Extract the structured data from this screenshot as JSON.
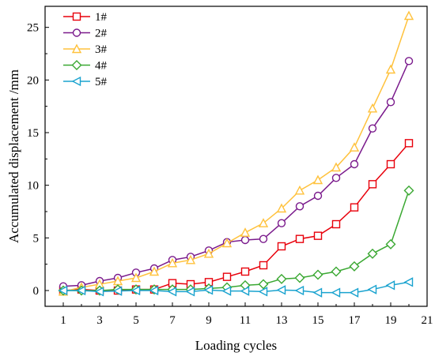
{
  "chart_data": {
    "type": "line",
    "title": "",
    "xlabel": "Loading cycles",
    "ylabel": "Accumulated displacement /mm",
    "xlim": [
      0,
      21
    ],
    "ylim": [
      -1.5,
      27
    ],
    "xticks": [
      1,
      3,
      5,
      7,
      9,
      11,
      13,
      15,
      17,
      19,
      21
    ],
    "xtick_labels": [
      "1",
      "3",
      "5",
      "7",
      "9",
      "11",
      "13",
      "15",
      "17",
      "19",
      "21"
    ],
    "yticks": [
      0,
      5,
      10,
      15,
      20,
      25
    ],
    "ytick_labels": [
      "0",
      "5",
      "10",
      "15",
      "20",
      "25"
    ],
    "grid": false,
    "legend_position": "top-left",
    "x": [
      1,
      2,
      3,
      4,
      5,
      6,
      7,
      8,
      9,
      10,
      11,
      12,
      13,
      14,
      15,
      16,
      17,
      18,
      19,
      20
    ],
    "series": [
      {
        "name": "1#",
        "color": "#e8000b",
        "marker": "square",
        "values": [
          0,
          0.1,
          0.0,
          0.0,
          0.1,
          0.1,
          0.7,
          0.6,
          0.8,
          1.3,
          1.8,
          2.4,
          4.2,
          4.9,
          5.2,
          6.3,
          7.9,
          10.1,
          12.0,
          14.0
        ]
      },
      {
        "name": "2#",
        "color": "#7a1a8c",
        "marker": "circle",
        "values": [
          0.4,
          0.5,
          0.9,
          1.2,
          1.7,
          2.1,
          2.9,
          3.2,
          3.8,
          4.6,
          4.8,
          4.9,
          6.4,
          8.0,
          9.0,
          10.7,
          12.0,
          15.4,
          17.9,
          21.8
        ]
      },
      {
        "name": "3#",
        "color": "#ffc23d",
        "marker": "triangle-up",
        "values": [
          -0.1,
          0.3,
          0.6,
          0.9,
          1.2,
          1.8,
          2.6,
          2.9,
          3.5,
          4.5,
          5.5,
          6.4,
          7.8,
          9.5,
          10.5,
          11.7,
          13.6,
          17.3,
          21.0,
          26.1
        ]
      },
      {
        "name": "4#",
        "color": "#3aa832",
        "marker": "diamond",
        "values": [
          0.0,
          0.0,
          0.0,
          0.1,
          0.1,
          0.1,
          0.1,
          0.1,
          0.2,
          0.3,
          0.5,
          0.6,
          1.1,
          1.2,
          1.5,
          1.8,
          2.3,
          3.5,
          4.4,
          9.5
        ]
      },
      {
        "name": "5#",
        "color": "#1aa3cf",
        "marker": "triangle-left",
        "values": [
          0.0,
          0.0,
          -0.1,
          -0.05,
          0.0,
          0.0,
          -0.1,
          -0.1,
          0.05,
          -0.05,
          -0.05,
          -0.1,
          0.05,
          0.0,
          -0.2,
          -0.2,
          -0.2,
          0.1,
          0.5,
          0.8
        ]
      }
    ]
  }
}
